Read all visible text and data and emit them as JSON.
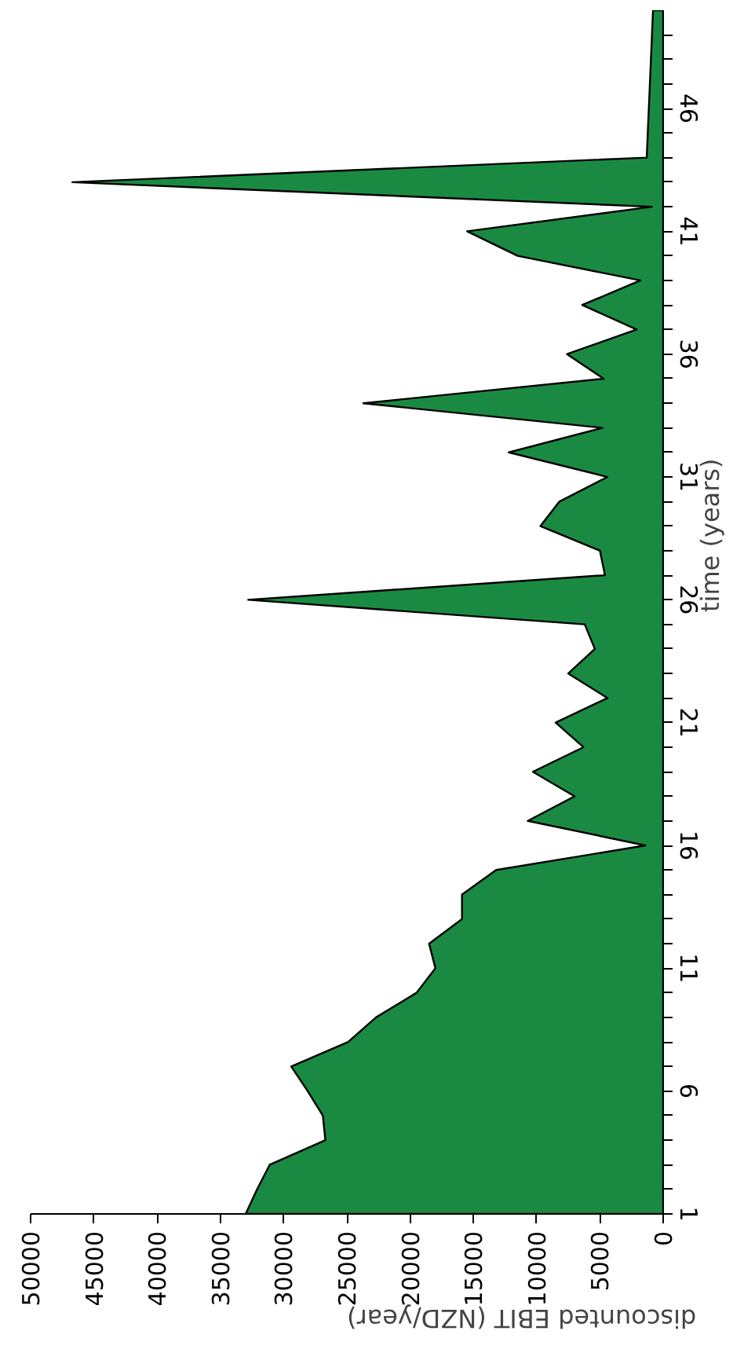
{
  "chart_data": {
    "type": "area",
    "orientation": "horizontal",
    "xlabel": "discounted EBIT (NZD/year)",
    "ylabel": "time (years)",
    "x": [
      1,
      2,
      3,
      4,
      5,
      6,
      7,
      8,
      9,
      10,
      11,
      12,
      13,
      14,
      15,
      16,
      17,
      18,
      19,
      20,
      21,
      22,
      23,
      24,
      25,
      26,
      27,
      28,
      29,
      30,
      31,
      32,
      33,
      34,
      35,
      36,
      37,
      38,
      39,
      40,
      41,
      42,
      43,
      44,
      50
    ],
    "series": [
      {
        "color": "#1a8a42",
        "values": [
          33000,
          32100,
          31100,
          26700,
          26900,
          28100,
          29400,
          24900,
          22700,
          19500,
          18000,
          18500,
          15900,
          15900,
          13200,
          1400,
          10700,
          7000,
          10300,
          6300,
          8500,
          4400,
          7500,
          5400,
          6200,
          32800,
          4600,
          5000,
          9700,
          8200,
          4400,
          12200,
          4800,
          23700,
          4700,
          7600,
          2100,
          6400,
          1800,
          11500,
          15500,
          900,
          46700,
          1300,
          800
        ]
      }
    ],
    "ylim": [
      1,
      50
    ],
    "yticks": [
      1,
      {
        "value": 2,
        "label": null
      },
      {
        "value": 3,
        "label": null
      },
      {
        "value": 4,
        "label": null
      },
      {
        "value": 5,
        "label": null
      },
      6,
      {
        "value": 7,
        "label": null
      },
      {
        "value": 8,
        "label": null
      },
      {
        "value": 9,
        "label": null
      },
      {
        "value": 10,
        "label": null
      },
      11,
      {
        "value": 12,
        "label": null
      },
      {
        "value": 13,
        "label": null
      },
      {
        "value": 14,
        "label": null
      },
      {
        "value": 15,
        "label": null
      },
      16,
      {
        "value": 17,
        "label": null
      },
      {
        "value": 18,
        "label": null
      },
      {
        "value": 19,
        "label": null
      },
      {
        "value": 20,
        "label": null
      },
      21,
      {
        "value": 22,
        "label": null
      },
      {
        "value": 23,
        "label": null
      },
      {
        "value": 24,
        "label": null
      },
      {
        "value": 25,
        "label": null
      },
      26,
      {
        "value": 27,
        "label": null
      },
      {
        "value": 28,
        "label": null
      },
      {
        "value": 29,
        "label": null
      },
      {
        "value": 30,
        "label": null
      },
      31,
      {
        "value": 32,
        "label": null
      },
      {
        "value": 33,
        "label": null
      },
      {
        "value": 34,
        "label": null
      },
      {
        "value": 35,
        "label": null
      },
      36,
      {
        "value": 37,
        "label": null
      },
      {
        "value": 38,
        "label": null
      },
      {
        "value": 39,
        "label": null
      },
      {
        "value": 40,
        "label": null
      },
      41,
      {
        "value": 42,
        "label": null
      },
      {
        "value": 43,
        "label": null
      },
      {
        "value": 44,
        "label": null
      },
      {
        "value": 45,
        "label": null
      },
      46,
      {
        "value": 47,
        "label": null
      },
      {
        "value": 48,
        "label": null
      },
      {
        "value": 49,
        "label": null
      }
    ],
    "xlim": [
      50000,
      0
    ],
    "xticks": [
      0,
      5000,
      10000,
      15000,
      20000,
      25000,
      30000,
      35000,
      40000,
      45000,
      50000
    ],
    "grid": false
  }
}
